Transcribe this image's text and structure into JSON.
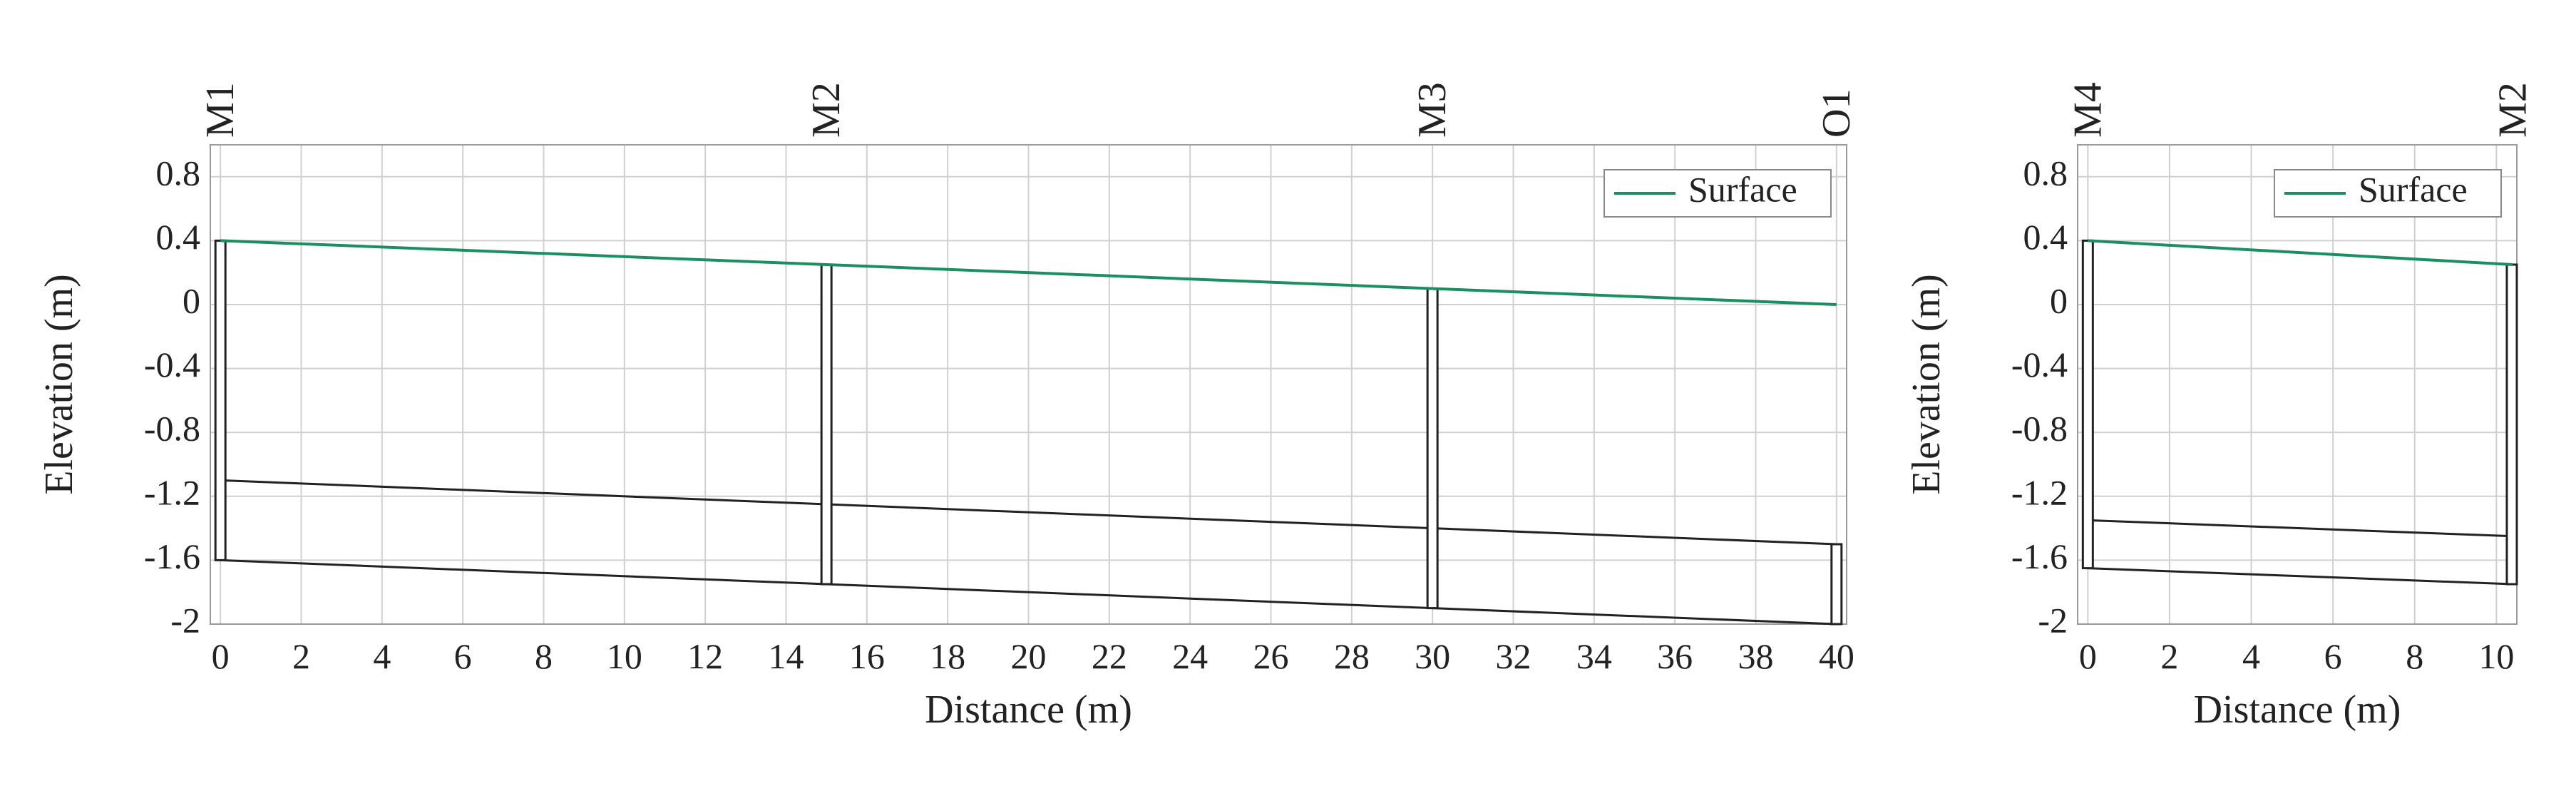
{
  "chart_data": [
    {
      "type": "profile",
      "x_label": "Distance (m)",
      "y_label": "Elevation (m)",
      "xlim": [
        -0.25,
        40.25
      ],
      "ylim": [
        -2,
        1.0
      ],
      "xticks": [
        0,
        2,
        4,
        6,
        8,
        10,
        12,
        14,
        16,
        18,
        20,
        22,
        24,
        26,
        28,
        30,
        32,
        34,
        36,
        38,
        40
      ],
      "yticks": [
        -2,
        -1.6,
        -1.2,
        -0.8,
        -0.4,
        0,
        0.4,
        0.8
      ],
      "grid": true,
      "legend_position": "upper right",
      "series": [
        {
          "name": "Surface",
          "color": "#1a9060",
          "x": [
            0,
            15,
            30,
            40
          ],
          "values": [
            0.4,
            0.25,
            0.1,
            0
          ]
        }
      ],
      "nodes": {
        "names": [
          "M1",
          "M2",
          "M3",
          "O1"
        ],
        "x": [
          0,
          15,
          30,
          40
        ],
        "invert": [
          -1.6,
          -1.75,
          -1.9,
          -2.0
        ],
        "rim": [
          0.4,
          0.25,
          0.1,
          -1.5
        ]
      },
      "conduit": {
        "x": [
          0,
          15,
          30,
          40
        ],
        "crown": [
          -1.1,
          -1.25,
          -1.4,
          -1.5
        ],
        "invert": [
          -1.6,
          -1.75,
          -1.9,
          -2.0
        ]
      }
    },
    {
      "type": "profile",
      "x_label": "Distance (m)",
      "y_label": "Elevation (m)",
      "xlim": [
        -0.25,
        10.5
      ],
      "ylim": [
        -2,
        1.0
      ],
      "xticks": [
        0,
        2,
        4,
        6,
        8,
        10
      ],
      "yticks": [
        -2,
        -1.6,
        -1.2,
        -0.8,
        -0.4,
        0,
        0.4,
        0.8
      ],
      "grid": true,
      "legend_position": "upper right",
      "series": [
        {
          "name": "Surface",
          "color": "#1a9060",
          "x": [
            0,
            10.4
          ],
          "values": [
            0.4,
            0.25
          ]
        }
      ],
      "nodes": {
        "names": [
          "M4",
          "M2"
        ],
        "x": [
          0,
          10.4
        ],
        "invert": [
          -1.65,
          -1.75
        ],
        "rim": [
          0.4,
          0.25
        ]
      },
      "conduit": {
        "x": [
          0,
          10.4
        ],
        "crown": [
          -1.35,
          -1.45
        ],
        "invert": [
          -1.65,
          -1.75
        ]
      }
    }
  ]
}
